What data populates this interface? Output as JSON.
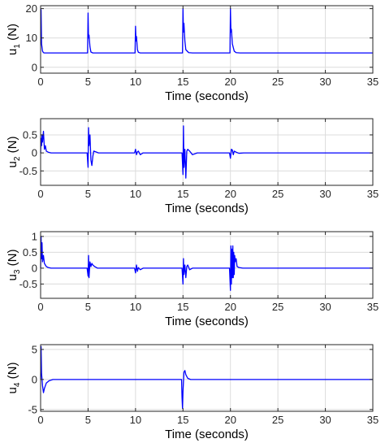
{
  "chart_data": [
    {
      "type": "line",
      "ylabel": {
        "base": "u",
        "sub": "1",
        "unit": "(N)"
      },
      "xlabel": "Time (seconds)",
      "xlim": [
        0,
        35
      ],
      "ylim": [
        -2,
        21
      ],
      "xticks": [
        "0",
        "5",
        "10",
        "15",
        "20",
        "25",
        "30",
        "35"
      ],
      "yticks": [
        "0",
        "10",
        "20"
      ],
      "ytick_values": [
        0,
        10,
        20
      ],
      "grid": true,
      "color": "#0000ff",
      "series": [
        {
          "x": [
            0,
            0.05,
            0.1,
            0.2,
            0.3,
            0.4,
            0.5,
            1,
            4.95,
            5.0,
            5.05,
            5.1,
            5.2,
            5.3,
            5.5,
            6,
            9.95,
            10.0,
            10.05,
            10.1,
            10.2,
            10.3,
            10.5,
            11,
            14.95,
            15.0,
            15.05,
            15.1,
            15.2,
            15.3,
            15.6,
            16,
            19.95,
            20.0,
            20.05,
            20.1,
            20.2,
            20.4,
            20.6,
            21,
            35
          ],
          "y": [
            20,
            19.5,
            8,
            5.5,
            5,
            4.9,
            4.9,
            4.9,
            4.9,
            18.5,
            10,
            11,
            7,
            5.2,
            4.9,
            4.9,
            4.9,
            14,
            9,
            10.5,
            6,
            5.1,
            4.9,
            4.9,
            4.9,
            20,
            12,
            15,
            9,
            6,
            5,
            4.9,
            4.9,
            20,
            12,
            13,
            8,
            5.5,
            5,
            4.9,
            4.9
          ]
        }
      ]
    },
    {
      "type": "line",
      "ylabel": {
        "base": "u",
        "sub": "2",
        "unit": "(N)"
      },
      "xlabel": "Time (seconds)",
      "xlim": [
        0,
        35
      ],
      "ylim": [
        -0.9,
        0.95
      ],
      "xticks": [
        "0",
        "5",
        "10",
        "15",
        "20",
        "25",
        "30",
        "35"
      ],
      "yticks": [
        "-0.5",
        "0",
        "0.5"
      ],
      "ytick_values": [
        -0.5,
        0,
        0.5
      ],
      "grid": true,
      "color": "#0000ff",
      "series": [
        {
          "x": [
            0,
            0.05,
            0.1,
            0.15,
            0.2,
            0.3,
            0.4,
            0.5,
            0.6,
            0.8,
            1.1,
            1.5,
            4.9,
            5.0,
            5.05,
            5.1,
            5.2,
            5.3,
            5.4,
            5.5,
            5.6,
            5.8,
            6.1,
            6.6,
            9.9,
            10.0,
            10.1,
            10.2,
            10.3,
            10.5,
            10.8,
            11.2,
            14.9,
            15.0,
            15.05,
            15.1,
            15.2,
            15.3,
            15.4,
            15.5,
            15.7,
            16.0,
            16.5,
            19.9,
            20.0,
            20.1,
            20.2,
            20.3,
            20.4,
            20.6,
            20.9,
            21.4,
            35
          ],
          "y": [
            0,
            0.4,
            0.2,
            0.5,
            0.3,
            0.6,
            0.1,
            0.2,
            0.05,
            0.02,
            0,
            0,
            0,
            -0.4,
            0.7,
            0.2,
            0.5,
            -0.2,
            -0.35,
            -0.1,
            0.05,
            0.03,
            0,
            0,
            0,
            0.1,
            -0.05,
            0.03,
            0.05,
            -0.05,
            0,
            0,
            0,
            -0.6,
            0.75,
            -0.4,
            0.1,
            -0.7,
            0.05,
            0.1,
            0.05,
            -0.05,
            0,
            0,
            -0.15,
            0.1,
            0.08,
            -0.05,
            0.05,
            0.02,
            -0.01,
            0,
            0
          ]
        }
      ]
    },
    {
      "type": "line",
      "ylabel": {
        "base": "u",
        "sub": "3",
        "unit": "(N)"
      },
      "xlabel": "Time (seconds)",
      "xlim": [
        0,
        35
      ],
      "ylim": [
        -0.95,
        1.15
      ],
      "xticks": [
        "0",
        "5",
        "10",
        "15",
        "20",
        "25",
        "30",
        "35"
      ],
      "yticks": [
        "-0.5",
        "0",
        "0.5",
        "1"
      ],
      "ytick_values": [
        -0.5,
        0,
        0.5,
        1
      ],
      "grid": true,
      "color": "#0000ff",
      "series": [
        {
          "x": [
            0,
            0.05,
            0.1,
            0.15,
            0.2,
            0.3,
            0.4,
            0.5,
            0.6,
            0.8,
            1.1,
            1.5,
            4.9,
            5.0,
            5.05,
            5.1,
            5.2,
            5.3,
            5.4,
            5.5,
            5.7,
            6.0,
            6.5,
            9.9,
            10.0,
            10.1,
            10.2,
            10.3,
            10.5,
            10.8,
            11.2,
            14.9,
            15.0,
            15.05,
            15.1,
            15.2,
            15.3,
            15.4,
            15.5,
            15.7,
            16.0,
            16.5,
            19.9,
            20.0,
            20.05,
            20.1,
            20.15,
            20.2,
            20.25,
            20.3,
            20.35,
            20.4,
            20.45,
            20.5,
            20.6,
            20.7,
            20.9,
            21.3,
            35
          ],
          "y": [
            0,
            1.0,
            0.3,
            0.8,
            0.2,
            0.4,
            0.15,
            0.1,
            0.05,
            0.02,
            0,
            0,
            0,
            -0.25,
            0.4,
            -0.3,
            0.2,
            0.05,
            0.15,
            0.1,
            0.05,
            0,
            0,
            0,
            -0.15,
            0.1,
            -0.1,
            0.02,
            -0.05,
            0,
            0,
            0,
            -0.5,
            0.3,
            -0.2,
            0.1,
            -0.3,
            0.05,
            0.1,
            -0.05,
            0,
            0,
            0,
            -0.7,
            0.7,
            -0.5,
            0.6,
            -0.3,
            0.7,
            -0.3,
            0.5,
            -0.2,
            0.4,
            0.2,
            0.3,
            0.05,
            0.02,
            0,
            0
          ]
        }
      ]
    },
    {
      "type": "line",
      "ylabel": {
        "base": "u",
        "sub": "4",
        "unit": "(N)"
      },
      "xlabel": "Time (seconds)",
      "xlim": [
        0,
        35
      ],
      "ylim": [
        -5.3,
        5.8
      ],
      "xticks": [
        "0",
        "5",
        "10",
        "15",
        "20",
        "25",
        "30",
        "35"
      ],
      "yticks": [
        "-5",
        "0",
        "5"
      ],
      "ytick_values": [
        -5,
        0,
        5
      ],
      "grid": true,
      "color": "#0000ff",
      "series": [
        {
          "x": [
            0,
            0.05,
            0.1,
            0.2,
            0.3,
            0.4,
            0.6,
            0.9,
            1.3,
            1.8,
            14.85,
            14.9,
            14.95,
            15.0,
            15.1,
            15.2,
            15.3,
            15.5,
            15.8,
            16.2,
            35
          ],
          "y": [
            0,
            5.5,
            1,
            -1,
            -2.2,
            -1.5,
            -0.6,
            -0.2,
            0,
            0,
            0,
            -3,
            -4.8,
            -2,
            1.2,
            1.5,
            0.8,
            0.2,
            0,
            0,
            0
          ]
        }
      ]
    }
  ]
}
